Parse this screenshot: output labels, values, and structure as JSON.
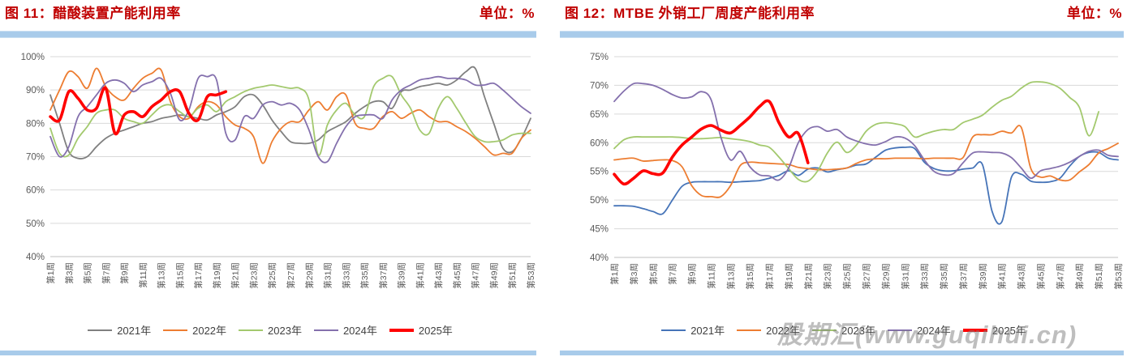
{
  "watermark": "股期汇(www.guqihui.cn)",
  "colors": {
    "title_red": "#C00000",
    "bar_blue": "#A8CBEA",
    "grid": "#D9D9D9",
    "axis_line": "#BFBFBF",
    "tick_text": "#595959"
  },
  "charts": [
    {
      "title": "图 11：醋酸装置产能利用率",
      "unit_label": "单位：%",
      "y_tick_labels": [
        "100%",
        "90%",
        "80%",
        "70%",
        "60%",
        "50%",
        "40%"
      ],
      "y_tick_values": [
        100,
        90,
        80,
        70,
        60,
        50,
        40
      ],
      "weeks": 53,
      "x_tick_labels": [
        "第1周",
        "第3周",
        "第5周",
        "第7周",
        "第9周",
        "第11周",
        "第13周",
        "第15周",
        "第17周",
        "第19周",
        "第21周",
        "第23周",
        "第25周",
        "第27周",
        "第29周",
        "第31周",
        "第33周",
        "第35周",
        "第37周",
        "第39周",
        "第41周",
        "第43周",
        "第45周",
        "第47周",
        "第49周",
        "第51周",
        "第53周"
      ],
      "series": [
        {
          "name": "2021年",
          "color": "#808080",
          "width": 1.8,
          "values": [
            88.5,
            80,
            71.5,
            69.5,
            70,
            73,
            75.5,
            77,
            78,
            79,
            80,
            80.5,
            81.5,
            82,
            82.5,
            82,
            81.5,
            81,
            82.5,
            83.5,
            85,
            88,
            88.5,
            85.5,
            81,
            77.5,
            74.5,
            74,
            74,
            75,
            77.5,
            79,
            80.5,
            83,
            85,
            86.5,
            86.5,
            84.5,
            89.5,
            90,
            91,
            91.5,
            92,
            91.5,
            93,
            95.5,
            96.5,
            88,
            80,
            72.5,
            71.5,
            75.5,
            81.5
          ]
        },
        {
          "name": "2022年",
          "color": "#ED7D31",
          "width": 1.8,
          "values": [
            84,
            90,
            95.5,
            94,
            90.5,
            96.5,
            91,
            88,
            87,
            90.5,
            93.5,
            95,
            96,
            86.5,
            82,
            81.5,
            85,
            86.5,
            85.5,
            82,
            79.5,
            78.5,
            76,
            68,
            74.5,
            78.5,
            80.5,
            80.5,
            84,
            86.5,
            84,
            88,
            88.5,
            80,
            78.5,
            78.5,
            82,
            83.5,
            81.5,
            83,
            84,
            82,
            80.5,
            80.5,
            79,
            77.5,
            75.5,
            73,
            70.5,
            71,
            71,
            75.5,
            78
          ]
        },
        {
          "name": "2023年",
          "color": "#A3C96E",
          "width": 1.8,
          "values": [
            78.5,
            71,
            70.5,
            75.5,
            79,
            83,
            84,
            84,
            81.5,
            80.5,
            80,
            82.5,
            85,
            85.5,
            83.5,
            82,
            84.5,
            85.5,
            83.5,
            86.5,
            88,
            89.5,
            90.5,
            91,
            91.5,
            91,
            90.5,
            90.5,
            87,
            70.5,
            79.5,
            84,
            86,
            82.5,
            82,
            91,
            93.5,
            94,
            88.5,
            84.5,
            78,
            77,
            84.5,
            88,
            84.5,
            80,
            76,
            74.5,
            74.5,
            75,
            76.5,
            77,
            77
          ]
        },
        {
          "name": "2024年",
          "color": "#8470AD",
          "width": 1.8,
          "values": [
            76,
            70,
            73,
            82,
            85,
            88.5,
            92,
            93,
            92,
            89.5,
            91.5,
            92.5,
            93.5,
            89,
            81,
            84,
            93.5,
            94,
            93,
            77,
            75,
            82,
            81.5,
            85.5,
            86.5,
            85.5,
            86,
            84,
            78,
            70,
            68.5,
            74,
            79,
            82,
            82.5,
            82.5,
            81.5,
            87,
            90,
            91.5,
            93,
            93.5,
            94,
            93.5,
            93.5,
            93,
            91.5,
            91.5,
            92,
            90,
            87.5,
            85,
            83
          ]
        },
        {
          "name": "2025年",
          "color": "#FF0000",
          "width": 3.6,
          "values": [
            82,
            81,
            89.5,
            87.5,
            84,
            84.5,
            90.5,
            77,
            82.5,
            83.5,
            82,
            85,
            87,
            89.5,
            89.5,
            83,
            81,
            88,
            88.5,
            89.5
          ]
        }
      ]
    },
    {
      "title": "图 12：MTBE 外销工厂周度产能利用率",
      "unit_label": "单位：%",
      "y_tick_labels": [
        "75%",
        "70%",
        "65%",
        "60%",
        "55%",
        "50%",
        "45%",
        "40%"
      ],
      "y_tick_values": [
        75,
        70,
        65,
        60,
        55,
        50,
        45,
        40
      ],
      "weeks": 53,
      "x_tick_labels": [
        "第1周",
        "第3周",
        "第5周",
        "第7周",
        "第9周",
        "第11周",
        "第13周",
        "第15周",
        "第17周",
        "第19周",
        "第21周",
        "第23周",
        "第25周",
        "第27周",
        "第29周",
        "第31周",
        "第33周",
        "第35周",
        "第37周",
        "第39周",
        "第41周",
        "第43周",
        "第45周",
        "第47周",
        "第49周",
        "第51周",
        "第53周"
      ],
      "series": [
        {
          "name": "2021年",
          "color": "#4674B8",
          "width": 1.8,
          "values": [
            49,
            49,
            48.9,
            48.5,
            48,
            47.6,
            50,
            52.4,
            53.1,
            53.2,
            53.2,
            53.2,
            53.1,
            53.2,
            53.3,
            53.4,
            53.8,
            54.3,
            55.1,
            54.3,
            55.4,
            55.6,
            54.9,
            55.3,
            55.6,
            56.1,
            56.3,
            57.5,
            58.7,
            59.1,
            59.2,
            59,
            56.6,
            55.5,
            55.1,
            55.1,
            55.4,
            55.6,
            56.2,
            48,
            46.2,
            54,
            54.5,
            53.3,
            53.1,
            53.2,
            53.8,
            55.9,
            57.6,
            58.3,
            58.3,
            57.3,
            57
          ]
        },
        {
          "name": "2022年",
          "color": "#ED7D31",
          "width": 1.8,
          "values": [
            57,
            57.2,
            57.3,
            56.8,
            56.9,
            57,
            56.9,
            55.8,
            52.5,
            50.8,
            50.6,
            50.6,
            52.5,
            56,
            56.6,
            56.5,
            56.4,
            56.3,
            56.2,
            55.7,
            55.5,
            55.3,
            55.3,
            55.4,
            55.6,
            56.4,
            57,
            57.2,
            57.2,
            57.3,
            57.3,
            57.3,
            57.2,
            57.3,
            57.3,
            57.3,
            57.4,
            61,
            61.4,
            61.4,
            62,
            61.7,
            62.7,
            55.5,
            54,
            54.2,
            53.5,
            53.5,
            54.9,
            56.2,
            58.2,
            59,
            59.9
          ]
        },
        {
          "name": "2023年",
          "color": "#A3C96E",
          "width": 1.8,
          "values": [
            59,
            60.5,
            61,
            61,
            61,
            61,
            61,
            60.9,
            60.7,
            60.7,
            60.8,
            60.9,
            60.7,
            60.5,
            60.2,
            59.6,
            59.2,
            57.5,
            55.5,
            53.6,
            53.3,
            55.1,
            58.2,
            60.1,
            58.3,
            59.6,
            62,
            63.2,
            63.5,
            63.3,
            62.8,
            61,
            61.5,
            62,
            62.3,
            62.3,
            63.5,
            64.1,
            64.8,
            66.2,
            67.4,
            68.1,
            69.5,
            70.5,
            70.6,
            70.3,
            69.5,
            67.9,
            66.2,
            61.2,
            65.4
          ]
        },
        {
          "name": "2024年",
          "color": "#8470AD",
          "width": 1.8,
          "values": [
            67.2,
            69,
            70.3,
            70.3,
            70,
            69.3,
            68.4,
            67.8,
            68,
            68.9,
            67.5,
            61,
            57,
            58.5,
            55.8,
            54.4,
            54.2,
            53.5,
            55.6,
            60,
            62.3,
            62.8,
            62,
            62.3,
            61,
            60.3,
            59.8,
            59.6,
            60.2,
            61,
            60.8,
            59.5,
            57,
            55,
            54.4,
            54.6,
            56.5,
            58.2,
            58.4,
            58.3,
            58.2,
            57.4,
            55.6,
            53.8,
            55.1,
            55.5,
            55.9,
            56.6,
            57.6,
            58.5,
            58.7,
            57.8,
            57.6
          ]
        },
        {
          "name": "2025年",
          "color": "#FF0000",
          "width": 3.6,
          "values": [
            54.5,
            52.8,
            53.8,
            55.1,
            54.6,
            54.7,
            57.5,
            59.6,
            61,
            62.4,
            63,
            62.2,
            61.7,
            63,
            64.5,
            66.3,
            67.2,
            63.5,
            61,
            61.6,
            56.5
          ]
        }
      ]
    }
  ]
}
